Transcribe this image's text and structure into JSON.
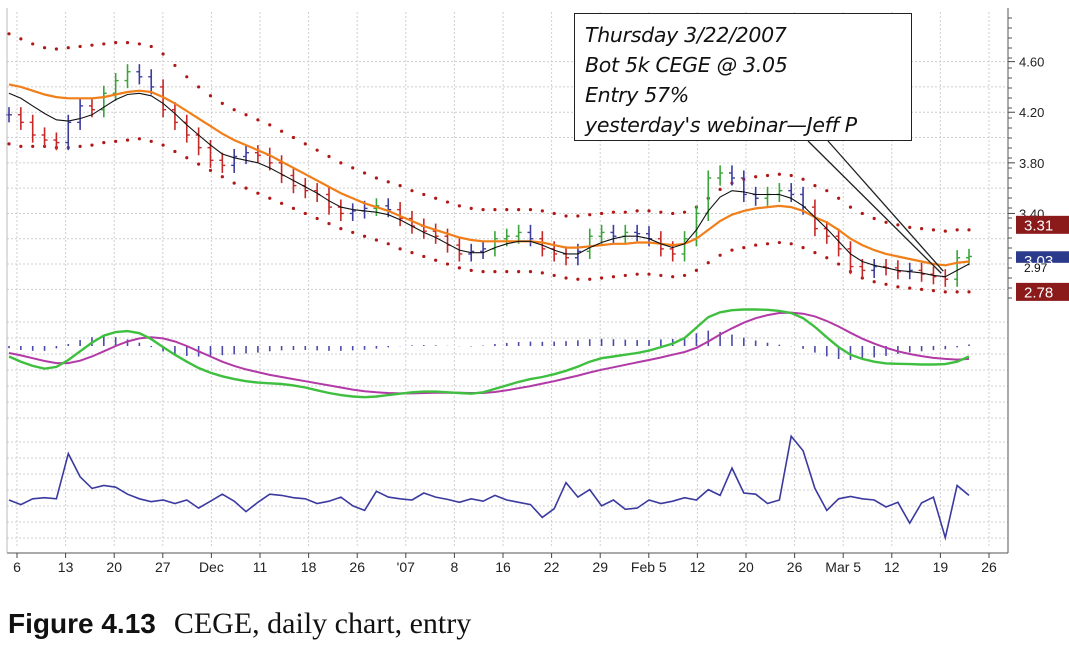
{
  "caption": {
    "figure_label": "Figure 4.13",
    "text": "CEGE, daily chart, entry"
  },
  "annotation": {
    "lines": [
      "Thursday 3/22/2007",
      "Bot 5k CEGE @ 3.05",
      "Entry 57%",
      "yesterday's webinar—Jeff P"
    ]
  },
  "colors": {
    "up_bar": "#3aa53a",
    "down_bar": "#c62828",
    "neutral_bar": "#3d3d9e",
    "ema_orange": "#f07f1a",
    "sma_black": "#111111",
    "envelope_dots": "#b01818",
    "macd_green": "#3fbf3f",
    "signal_magenta": "#b23aa6",
    "histogram": "#4a4aa8",
    "oscillator": "#3a3aa0",
    "grid": "#cfcfcf",
    "label_red": "#8b1a1a",
    "label_blue": "#2c3a8c"
  },
  "chart_data": {
    "type": "line",
    "title": "",
    "x_axis": {
      "tick_labels": [
        "6",
        "13",
        "20",
        "27",
        "Dec",
        "11",
        "18",
        "26",
        "'07",
        "8",
        "16",
        "22",
        "29",
        "Feb 5",
        "12",
        "20",
        "26",
        "Mar 5",
        "12",
        "19",
        "26"
      ]
    },
    "price_panel": {
      "ylim": [
        2.7,
        4.85
      ],
      "tick_labels": [
        "4.60",
        "4.20",
        "3.80",
        "3.40"
      ],
      "tick_values": [
        4.6,
        4.2,
        3.8,
        3.4
      ],
      "price_labels": [
        {
          "text": "3.31",
          "value": 3.31,
          "style": "red"
        },
        {
          "text": "3.03",
          "value": 3.03,
          "style": "blue"
        },
        {
          "text": "2.97",
          "value": 2.97,
          "style": "white"
        },
        {
          "text": "2.78",
          "value": 2.78,
          "style": "red"
        }
      ],
      "close": [
        4.18,
        4.12,
        4.02,
        3.98,
        3.96,
        4.12,
        4.25,
        4.22,
        4.35,
        4.45,
        4.52,
        4.48,
        4.4,
        4.22,
        4.12,
        4.02,
        3.92,
        3.82,
        3.78,
        3.85,
        3.88,
        3.86,
        3.8,
        3.7,
        3.62,
        3.58,
        3.55,
        3.45,
        3.4,
        3.42,
        3.44,
        3.46,
        3.43,
        3.36,
        3.3,
        3.26,
        3.22,
        3.15,
        3.08,
        3.1,
        3.12,
        3.2,
        3.22,
        3.25,
        3.2,
        3.12,
        3.08,
        3.05,
        3.1,
        3.22,
        3.25,
        3.22,
        3.25,
        3.24,
        3.2,
        3.12,
        3.08,
        3.2,
        3.4,
        3.68,
        3.72,
        3.68,
        3.55,
        3.52,
        3.55,
        3.58,
        3.55,
        3.45,
        3.28,
        3.22,
        3.12,
        2.98,
        2.95,
        2.98,
        2.97,
        2.94,
        2.95,
        2.92,
        2.9,
        2.88,
        3.05,
        3.06
      ],
      "ema": [
        4.42,
        4.4,
        4.37,
        4.34,
        4.32,
        4.31,
        4.31,
        4.31,
        4.32,
        4.34,
        4.36,
        4.37,
        4.36,
        4.32,
        4.27,
        4.21,
        4.15,
        4.09,
        4.03,
        3.98,
        3.94,
        3.9,
        3.86,
        3.81,
        3.76,
        3.71,
        3.66,
        3.61,
        3.56,
        3.52,
        3.48,
        3.45,
        3.42,
        3.38,
        3.34,
        3.3,
        3.27,
        3.24,
        3.21,
        3.19,
        3.18,
        3.18,
        3.18,
        3.18,
        3.18,
        3.17,
        3.15,
        3.13,
        3.13,
        3.14,
        3.15,
        3.16,
        3.16,
        3.17,
        3.17,
        3.16,
        3.15,
        3.16,
        3.2,
        3.27,
        3.34,
        3.39,
        3.42,
        3.44,
        3.45,
        3.46,
        3.45,
        3.42,
        3.37,
        3.33,
        3.27,
        3.2,
        3.15,
        3.11,
        3.08,
        3.06,
        3.04,
        3.02,
        3.0,
        2.99,
        3.01,
        3.02
      ],
      "sma": [
        4.35,
        4.31,
        4.25,
        4.19,
        4.14,
        4.13,
        4.15,
        4.18,
        4.24,
        4.3,
        4.34,
        4.35,
        4.33,
        4.27,
        4.19,
        4.1,
        4.02,
        3.94,
        3.87,
        3.84,
        3.82,
        3.8,
        3.76,
        3.71,
        3.66,
        3.61,
        3.56,
        3.5,
        3.45,
        3.43,
        3.42,
        3.41,
        3.39,
        3.35,
        3.3,
        3.25,
        3.21,
        3.16,
        3.11,
        3.09,
        3.09,
        3.13,
        3.16,
        3.18,
        3.18,
        3.15,
        3.11,
        3.08,
        3.08,
        3.13,
        3.17,
        3.2,
        3.22,
        3.22,
        3.2,
        3.16,
        3.13,
        3.16,
        3.27,
        3.42,
        3.53,
        3.58,
        3.57,
        3.55,
        3.55,
        3.55,
        3.52,
        3.46,
        3.37,
        3.28,
        3.18,
        3.08,
        3.02,
        2.99,
        2.97,
        2.95,
        2.94,
        2.93,
        2.91,
        2.9,
        2.95,
        3.0
      ],
      "upper_envelope": [
        4.82,
        4.78,
        4.74,
        4.71,
        4.7,
        4.71,
        4.72,
        4.73,
        4.74,
        4.75,
        4.75,
        4.74,
        4.72,
        4.66,
        4.57,
        4.48,
        4.4,
        4.33,
        4.27,
        4.22,
        4.18,
        4.14,
        4.1,
        4.05,
        4.0,
        3.95,
        3.9,
        3.85,
        3.8,
        3.76,
        3.72,
        3.68,
        3.65,
        3.62,
        3.58,
        3.55,
        3.52,
        3.49,
        3.46,
        3.44,
        3.43,
        3.43,
        3.43,
        3.43,
        3.43,
        3.42,
        3.4,
        3.38,
        3.38,
        3.39,
        3.4,
        3.41,
        3.41,
        3.42,
        3.42,
        3.41,
        3.4,
        3.41,
        3.45,
        3.52,
        3.59,
        3.64,
        3.67,
        3.69,
        3.7,
        3.71,
        3.7,
        3.67,
        3.62,
        3.58,
        3.52,
        3.45,
        3.4,
        3.36,
        3.33,
        3.31,
        3.29,
        3.28,
        3.27,
        3.26,
        3.27,
        3.27
      ],
      "lower_envelope": [
        3.95,
        3.93,
        3.93,
        3.93,
        3.92,
        3.92,
        3.93,
        3.94,
        3.96,
        3.97,
        3.98,
        3.99,
        3.97,
        3.94,
        3.89,
        3.84,
        3.79,
        3.74,
        3.69,
        3.64,
        3.6,
        3.56,
        3.52,
        3.48,
        3.44,
        3.4,
        3.36,
        3.32,
        3.28,
        3.25,
        3.22,
        3.19,
        3.16,
        3.12,
        3.09,
        3.06,
        3.03,
        3.0,
        2.97,
        2.95,
        2.94,
        2.94,
        2.94,
        2.94,
        2.94,
        2.93,
        2.91,
        2.89,
        2.88,
        2.88,
        2.89,
        2.9,
        2.91,
        2.92,
        2.92,
        2.91,
        2.9,
        2.91,
        2.95,
        3.01,
        3.07,
        3.11,
        3.13,
        3.15,
        3.16,
        3.17,
        3.16,
        3.13,
        3.09,
        3.05,
        3.0,
        2.94,
        2.89,
        2.86,
        2.84,
        2.82,
        2.81,
        2.8,
        2.79,
        2.78,
        2.78,
        2.78
      ]
    },
    "macd_panel": {
      "macd": [
        0.45,
        0.3,
        0.18,
        0.1,
        0.15,
        0.35,
        0.6,
        0.85,
        1.05,
        1.15,
        1.18,
        1.12,
        0.95,
        0.72,
        0.5,
        0.3,
        0.12,
        -0.02,
        -0.12,
        -0.2,
        -0.26,
        -0.3,
        -0.32,
        -0.34,
        -0.38,
        -0.44,
        -0.52,
        -0.6,
        -0.66,
        -0.7,
        -0.72,
        -0.7,
        -0.66,
        -0.62,
        -0.58,
        -0.56,
        -0.56,
        -0.58,
        -0.6,
        -0.62,
        -0.58,
        -0.48,
        -0.38,
        -0.28,
        -0.2,
        -0.14,
        -0.06,
        0.04,
        0.16,
        0.3,
        0.4,
        0.45,
        0.5,
        0.55,
        0.62,
        0.72,
        0.82,
        0.98,
        1.28,
        1.58,
        1.72,
        1.78,
        1.8,
        1.8,
        1.79,
        1.76,
        1.7,
        1.55,
        1.3,
        1.0,
        0.72,
        0.5,
        0.38,
        0.3,
        0.25,
        0.24,
        0.23,
        0.22,
        0.22,
        0.23,
        0.3,
        0.45
      ],
      "signal": [
        0.55,
        0.48,
        0.4,
        0.32,
        0.26,
        0.26,
        0.33,
        0.45,
        0.6,
        0.75,
        0.88,
        0.97,
        1.0,
        0.97,
        0.88,
        0.75,
        0.6,
        0.45,
        0.3,
        0.18,
        0.08,
        0.0,
        -0.08,
        -0.14,
        -0.2,
        -0.26,
        -0.32,
        -0.38,
        -0.44,
        -0.5,
        -0.55,
        -0.58,
        -0.6,
        -0.61,
        -0.61,
        -0.6,
        -0.59,
        -0.59,
        -0.59,
        -0.6,
        -0.6,
        -0.57,
        -0.52,
        -0.46,
        -0.4,
        -0.33,
        -0.26,
        -0.18,
        -0.1,
        -0.01,
        0.07,
        0.14,
        0.21,
        0.28,
        0.35,
        0.42,
        0.5,
        0.58,
        0.7,
        0.88,
        1.08,
        1.26,
        1.42,
        1.55,
        1.64,
        1.7,
        1.71,
        1.68,
        1.6,
        1.47,
        1.31,
        1.13,
        0.96,
        0.82,
        0.7,
        0.6,
        0.52,
        0.46,
        0.41,
        0.38,
        0.36,
        0.38
      ],
      "histogram": [
        -0.1,
        -0.18,
        -0.22,
        -0.22,
        -0.11,
        0.09,
        0.27,
        0.4,
        0.45,
        0.4,
        0.3,
        0.15,
        -0.05,
        -0.25,
        -0.38,
        -0.45,
        -0.48,
        -0.47,
        -0.42,
        -0.38,
        -0.34,
        -0.3,
        -0.24,
        -0.2,
        -0.18,
        -0.18,
        -0.2,
        -0.22,
        -0.22,
        -0.2,
        -0.17,
        -0.12,
        -0.06,
        -0.01,
        0.03,
        0.04,
        0.03,
        0.01,
        -0.01,
        -0.02,
        0.02,
        0.09,
        0.14,
        0.18,
        0.2,
        0.19,
        0.2,
        0.22,
        0.26,
        0.31,
        0.33,
        0.31,
        0.29,
        0.27,
        0.27,
        0.3,
        0.32,
        0.4,
        0.58,
        0.7,
        0.64,
        0.52,
        0.38,
        0.25,
        0.15,
        0.06,
        -0.01,
        -0.13,
        -0.3,
        -0.47,
        -0.59,
        -0.63,
        -0.58,
        -0.52,
        -0.45,
        -0.36,
        -0.29,
        -0.24,
        -0.19,
        -0.15,
        -0.06,
        0.07
      ]
    },
    "oscillator_panel": {
      "values": [
        0.0,
        -0.08,
        0.02,
        0.04,
        0.02,
        0.8,
        0.4,
        0.2,
        0.25,
        0.22,
        0.1,
        0.02,
        -0.03,
        0.0,
        -0.06,
        0.0,
        -0.14,
        -0.02,
        0.1,
        -0.02,
        -0.2,
        -0.04,
        0.1,
        0.08,
        0.04,
        0.02,
        -0.06,
        -0.02,
        0.05,
        -0.1,
        -0.18,
        0.15,
        0.05,
        0.02,
        0.0,
        0.12,
        0.05,
        0.01,
        -0.04,
        0.02,
        -0.02,
        0.08,
        0.0,
        -0.04,
        -0.08,
        -0.3,
        -0.15,
        0.3,
        0.05,
        0.18,
        -0.1,
        0.0,
        -0.16,
        -0.14,
        0.0,
        -0.06,
        -0.02,
        0.04,
        0.0,
        0.18,
        0.08,
        0.55,
        0.12,
        0.1,
        -0.06,
        0.0,
        1.1,
        0.85,
        0.2,
        -0.18,
        0.02,
        0.06,
        0.02,
        0.0,
        -0.12,
        -0.04,
        -0.4,
        -0.05,
        0.05,
        -0.65,
        0.25,
        0.08
      ]
    }
  }
}
